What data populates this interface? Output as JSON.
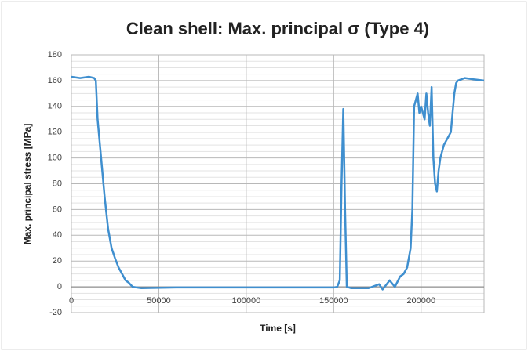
{
  "chart_data": {
    "type": "line",
    "title": "Clean shell: Max. principal σ (Type 4)",
    "xlabel": "Time [s]",
    "ylabel": "Max. principal stress [MPa]",
    "xlim": [
      0,
      236000
    ],
    "xticks": [
      0,
      50000,
      100000,
      150000,
      200000
    ],
    "ylim": [
      -20,
      180
    ],
    "yticks": [
      -20,
      0,
      20,
      40,
      60,
      80,
      100,
      120,
      140,
      160,
      180
    ],
    "minor_yticks": [
      -15,
      -10,
      -5,
      5,
      10,
      15,
      25,
      30,
      35,
      45,
      50,
      55,
      65,
      70,
      75,
      85,
      90,
      95,
      105,
      110,
      115,
      125,
      130,
      135,
      145,
      150,
      155,
      165,
      170,
      175
    ],
    "grid": true,
    "series": [
      {
        "name": "Max. principal stress",
        "color": "#3f8fcf",
        "x": [
          0,
          5000,
          10000,
          13000,
          14000,
          15000,
          17000,
          19000,
          21000,
          23000,
          25000,
          27000,
          29000,
          31000,
          33000,
          35000,
          40000,
          60000,
          100000,
          150000,
          152000,
          153500,
          154500,
          155500,
          156500,
          157500,
          160000,
          170000,
          176000,
          178000,
          182000,
          185000,
          188000,
          190000,
          192000,
          194000,
          195000,
          196000,
          197000,
          198000,
          199000,
          200000,
          202000,
          203000,
          204000,
          205000,
          206000,
          207000,
          208000,
          209000,
          210000,
          211000,
          213000,
          215000,
          217000,
          219000,
          220000,
          221000,
          225000,
          230000,
          236000
        ],
        "values": [
          163,
          162,
          163,
          162,
          160,
          130,
          100,
          70,
          45,
          30,
          22,
          15,
          10,
          5,
          3,
          0,
          -1,
          -0.5,
          -0.5,
          -0.5,
          0,
          5,
          80,
          138,
          60,
          0,
          -1,
          -1,
          2,
          -2,
          5,
          0,
          8,
          10,
          15,
          30,
          60,
          140,
          145,
          150,
          135,
          140,
          130,
          150,
          135,
          125,
          155,
          100,
          80,
          74,
          90,
          100,
          110,
          115,
          120,
          150,
          158,
          160,
          162,
          161,
          160
        ]
      }
    ]
  }
}
